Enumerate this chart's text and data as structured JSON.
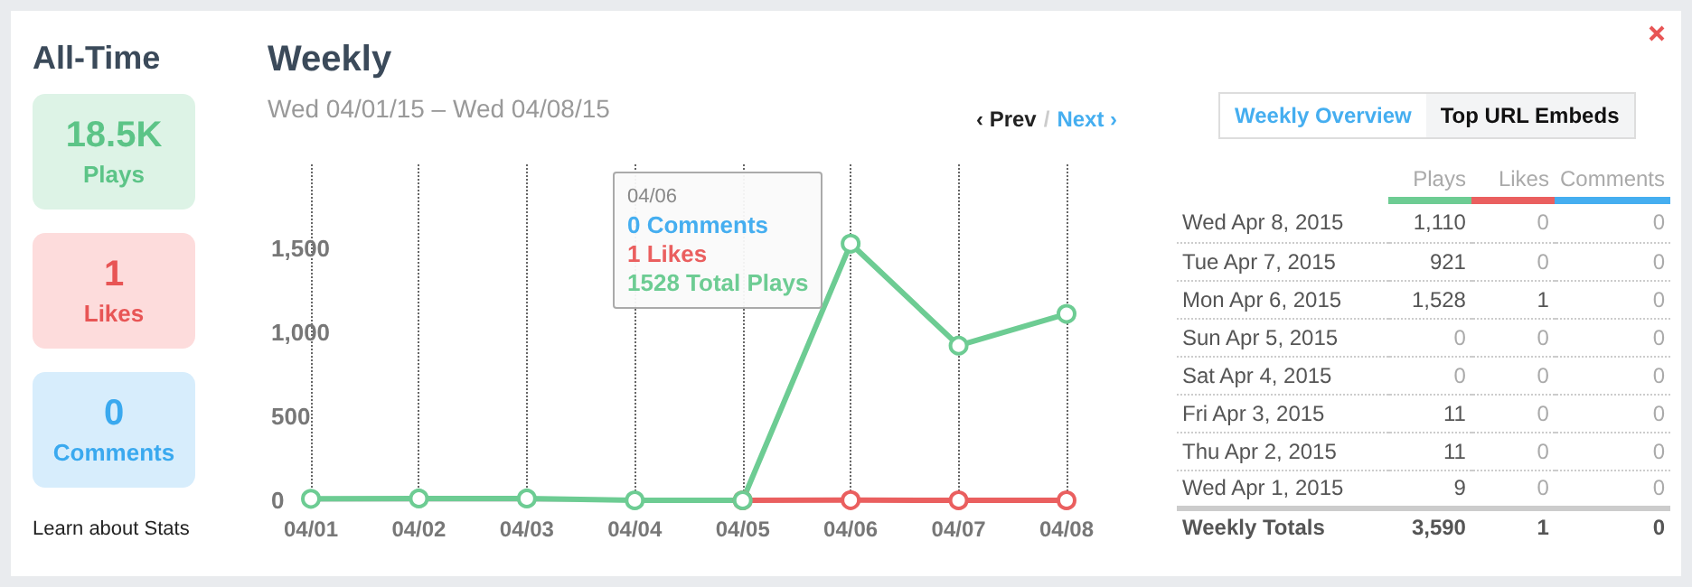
{
  "chart_data": [
    {
      "type": "other",
      "title": "All-Time",
      "annotations": [
        "18.5K",
        "Plays",
        "1",
        "Likes",
        "0",
        "Comments",
        "Learn about Stats"
      ]
    },
    {
      "type": "line",
      "title": "Weekly",
      "subtitle": "Wed 04/01/15 – Wed 04/08/15",
      "categories": [
        "04/01",
        "04/02",
        "04/03",
        "04/04",
        "04/05",
        "04/06",
        "04/07",
        "04/08"
      ],
      "series": [
        {
          "color": "#ea5f5f",
          "values": [
            null,
            null,
            null,
            null,
            0,
            1,
            0,
            0
          ]
        },
        {
          "color": "#6dcc93",
          "values": [
            9,
            11,
            11,
            0,
            0,
            1528,
            921,
            1110
          ]
        }
      ],
      "ylim": [
        0,
        2000
      ],
      "yticks": [
        0,
        500,
        {
          "value": 1000,
          "label": "1,000"
        },
        {
          "value": 1500,
          "label": "1,500"
        }
      ],
      "grid": "x",
      "marker": "circle",
      "line_style": "solid",
      "annotations": [
        "04/06",
        "0 Comments",
        "1 Likes",
        "1528 Total Plays",
        "‹ Prev",
        "/",
        "Next ›"
      ]
    },
    {
      "type": "other",
      "categories": [
        "Wed Apr 8, 2015",
        "Tue Apr 7, 2015",
        "Mon Apr 6, 2015",
        "Sun Apr 5, 2015",
        "Sat Apr 4, 2015",
        "Fri Apr 3, 2015",
        "Thu Apr 2, 2015",
        "Wed Apr 1, 2015"
      ],
      "series": [
        {
          "name": "Plays",
          "values": [
            1110,
            921,
            1528,
            0,
            0,
            11,
            11,
            9
          ],
          "value_labels": [
            "1,110",
            "921",
            "1,528",
            "0",
            "0",
            "11",
            "11",
            "9"
          ]
        },
        {
          "name": "Likes",
          "values": [
            0,
            0,
            1,
            0,
            0,
            0,
            0,
            0
          ]
        },
        {
          "name": "Comments",
          "values": [
            0,
            0,
            0,
            0,
            0,
            0,
            0,
            0
          ]
        }
      ],
      "data_labels": true,
      "totals": [
        "3,590",
        "1",
        "0"
      ],
      "annotations": [
        "Weekly Overview",
        "Top URL Embeds",
        "Weekly Totals"
      ]
    }
  ]
}
